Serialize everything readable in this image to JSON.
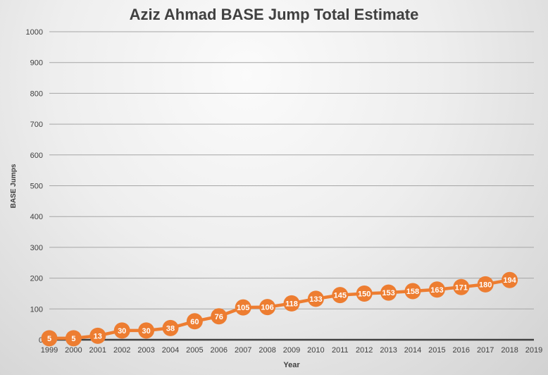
{
  "chart_data": {
    "type": "line",
    "title": "Aziz Ahmad BASE Jump Total Estimate",
    "xlabel": "Year",
    "ylabel": "BASE Jumps",
    "x": [
      1999,
      2000,
      2001,
      2002,
      2003,
      2004,
      2005,
      2006,
      2007,
      2008,
      2009,
      2010,
      2011,
      2012,
      2013,
      2014,
      2015,
      2016,
      2017,
      2018
    ],
    "series": [
      {
        "name": "BASE Jumps",
        "values": [
          5,
          5,
          13,
          30,
          30,
          38,
          60,
          76,
          105,
          106,
          118,
          133,
          145,
          150,
          153,
          158,
          163,
          171,
          180,
          194
        ],
        "color": "#ed7d31",
        "data_labels": true
      }
    ],
    "xlim": [
      1999,
      2019
    ],
    "ylim": [
      0,
      1000
    ],
    "x_ticks": [
      1999,
      2000,
      2001,
      2002,
      2003,
      2004,
      2005,
      2006,
      2007,
      2008,
      2009,
      2010,
      2011,
      2012,
      2013,
      2014,
      2015,
      2016,
      2017,
      2018,
      2019
    ],
    "y_ticks": [
      0,
      100,
      200,
      300,
      400,
      500,
      600,
      700,
      800,
      900,
      1000
    ],
    "grid": true,
    "legend": "none"
  }
}
